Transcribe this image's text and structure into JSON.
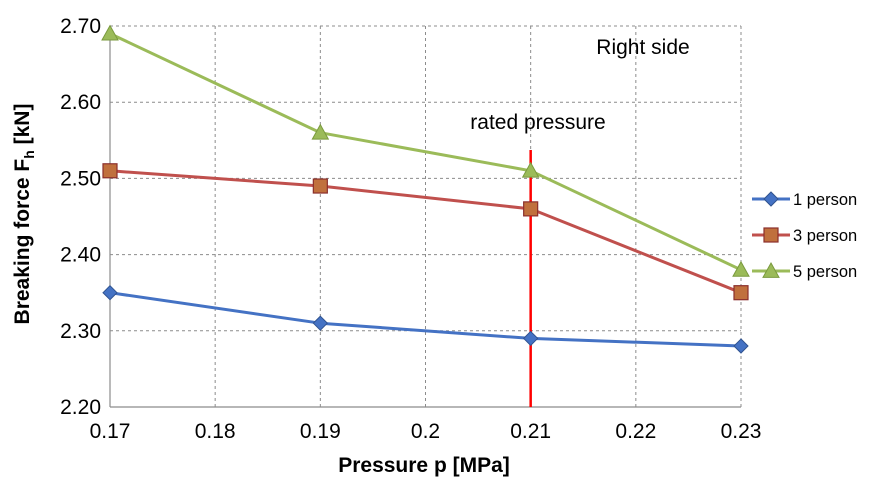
{
  "chart_data": {
    "type": "line",
    "x": [
      0.17,
      0.19,
      0.21,
      0.23
    ],
    "series": [
      {
        "name": "1 person",
        "values": [
          2.35,
          2.31,
          2.29,
          2.28
        ],
        "color": "#4472C4",
        "marker": "diamond"
      },
      {
        "name": "3 person",
        "values": [
          2.51,
          2.49,
          2.46,
          2.35
        ],
        "color": "#C0504D",
        "marker": "square"
      },
      {
        "name": "5 person",
        "values": [
          2.69,
          2.56,
          2.51,
          2.38
        ],
        "color": "#9BBB59",
        "marker": "triangle"
      }
    ],
    "xlabel": "Pressure p [MPa]",
    "ylabel": "Breaking force F",
    "ylabel_subscript": "h",
    "ylabel_unit": " [kN]",
    "xlim": [
      0.17,
      0.23
    ],
    "ylim": [
      2.2,
      2.7
    ],
    "xticks": [
      0.17,
      0.18,
      0.19,
      0.2,
      0.21,
      0.22,
      0.23
    ],
    "xtick_labels": [
      "0.17",
      "0.18",
      "0.19",
      "0.2",
      "0.21",
      "0.22",
      "0.23"
    ],
    "yticks": [
      2.2,
      2.3,
      2.4,
      2.5,
      2.6,
      2.7
    ],
    "ytick_labels": [
      "2.20",
      "2.30",
      "2.40",
      "2.50",
      "2.60",
      "2.70"
    ],
    "grid": true,
    "legend_position": "right",
    "annotations": [
      {
        "text": "Right side"
      },
      {
        "text": "rated pressure",
        "x": 0.21,
        "type": "vertical-line",
        "color": "#FF0000"
      }
    ]
  }
}
